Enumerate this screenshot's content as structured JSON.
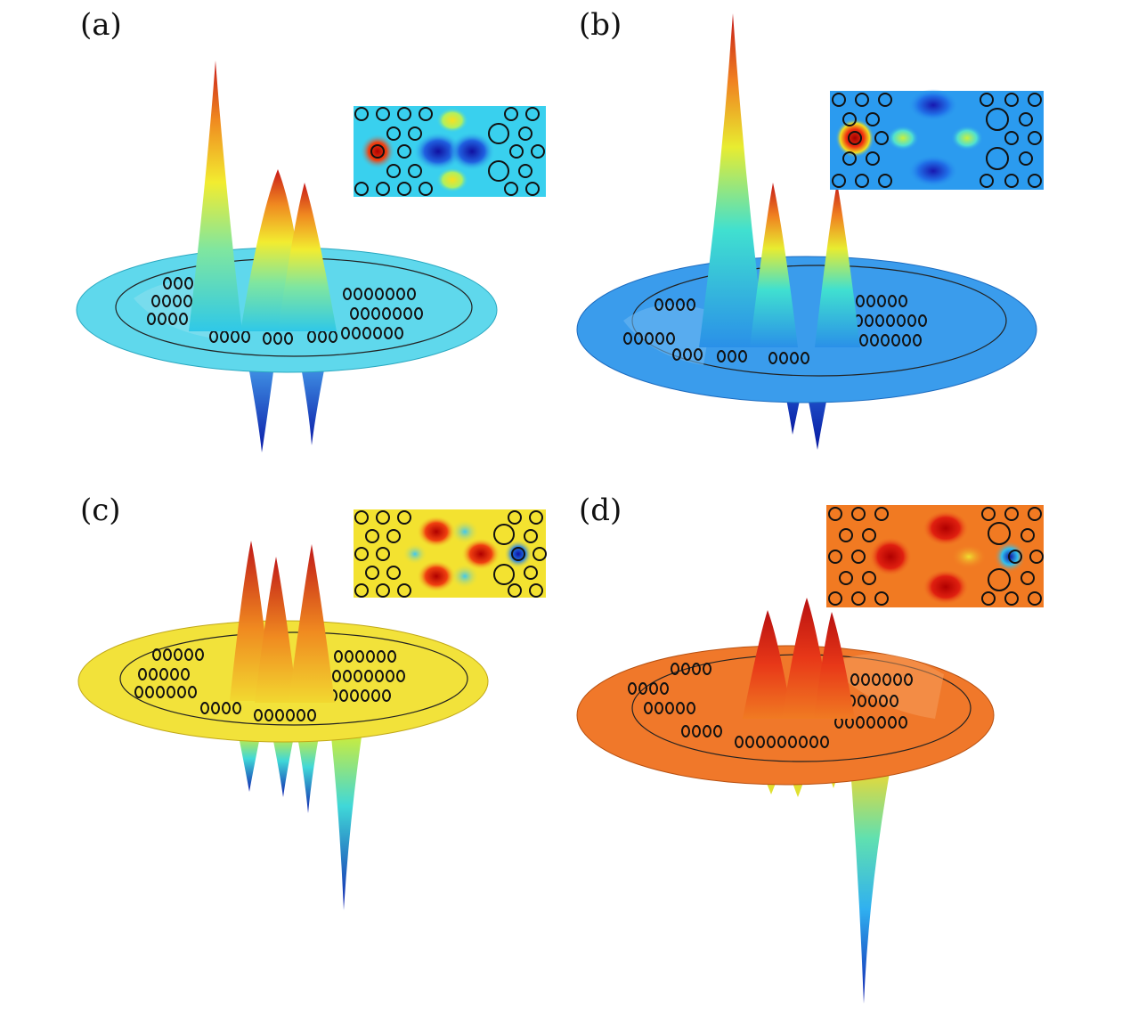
{
  "figure": {
    "panels": [
      {
        "id": "a",
        "label": "(a)",
        "plate_color": "#5fd8ec",
        "inset_background": "#39d0ee"
      },
      {
        "id": "b",
        "label": "(b)",
        "plate_color": "#3a9cec",
        "inset_background": "#2b9bef"
      },
      {
        "id": "c",
        "label": "(c)",
        "plate_color": "#f2e23a",
        "inset_background": "#f3e230"
      },
      {
        "id": "d",
        "label": "(d)",
        "plate_color": "#f0782a",
        "inset_background": "#f17a22"
      }
    ]
  }
}
